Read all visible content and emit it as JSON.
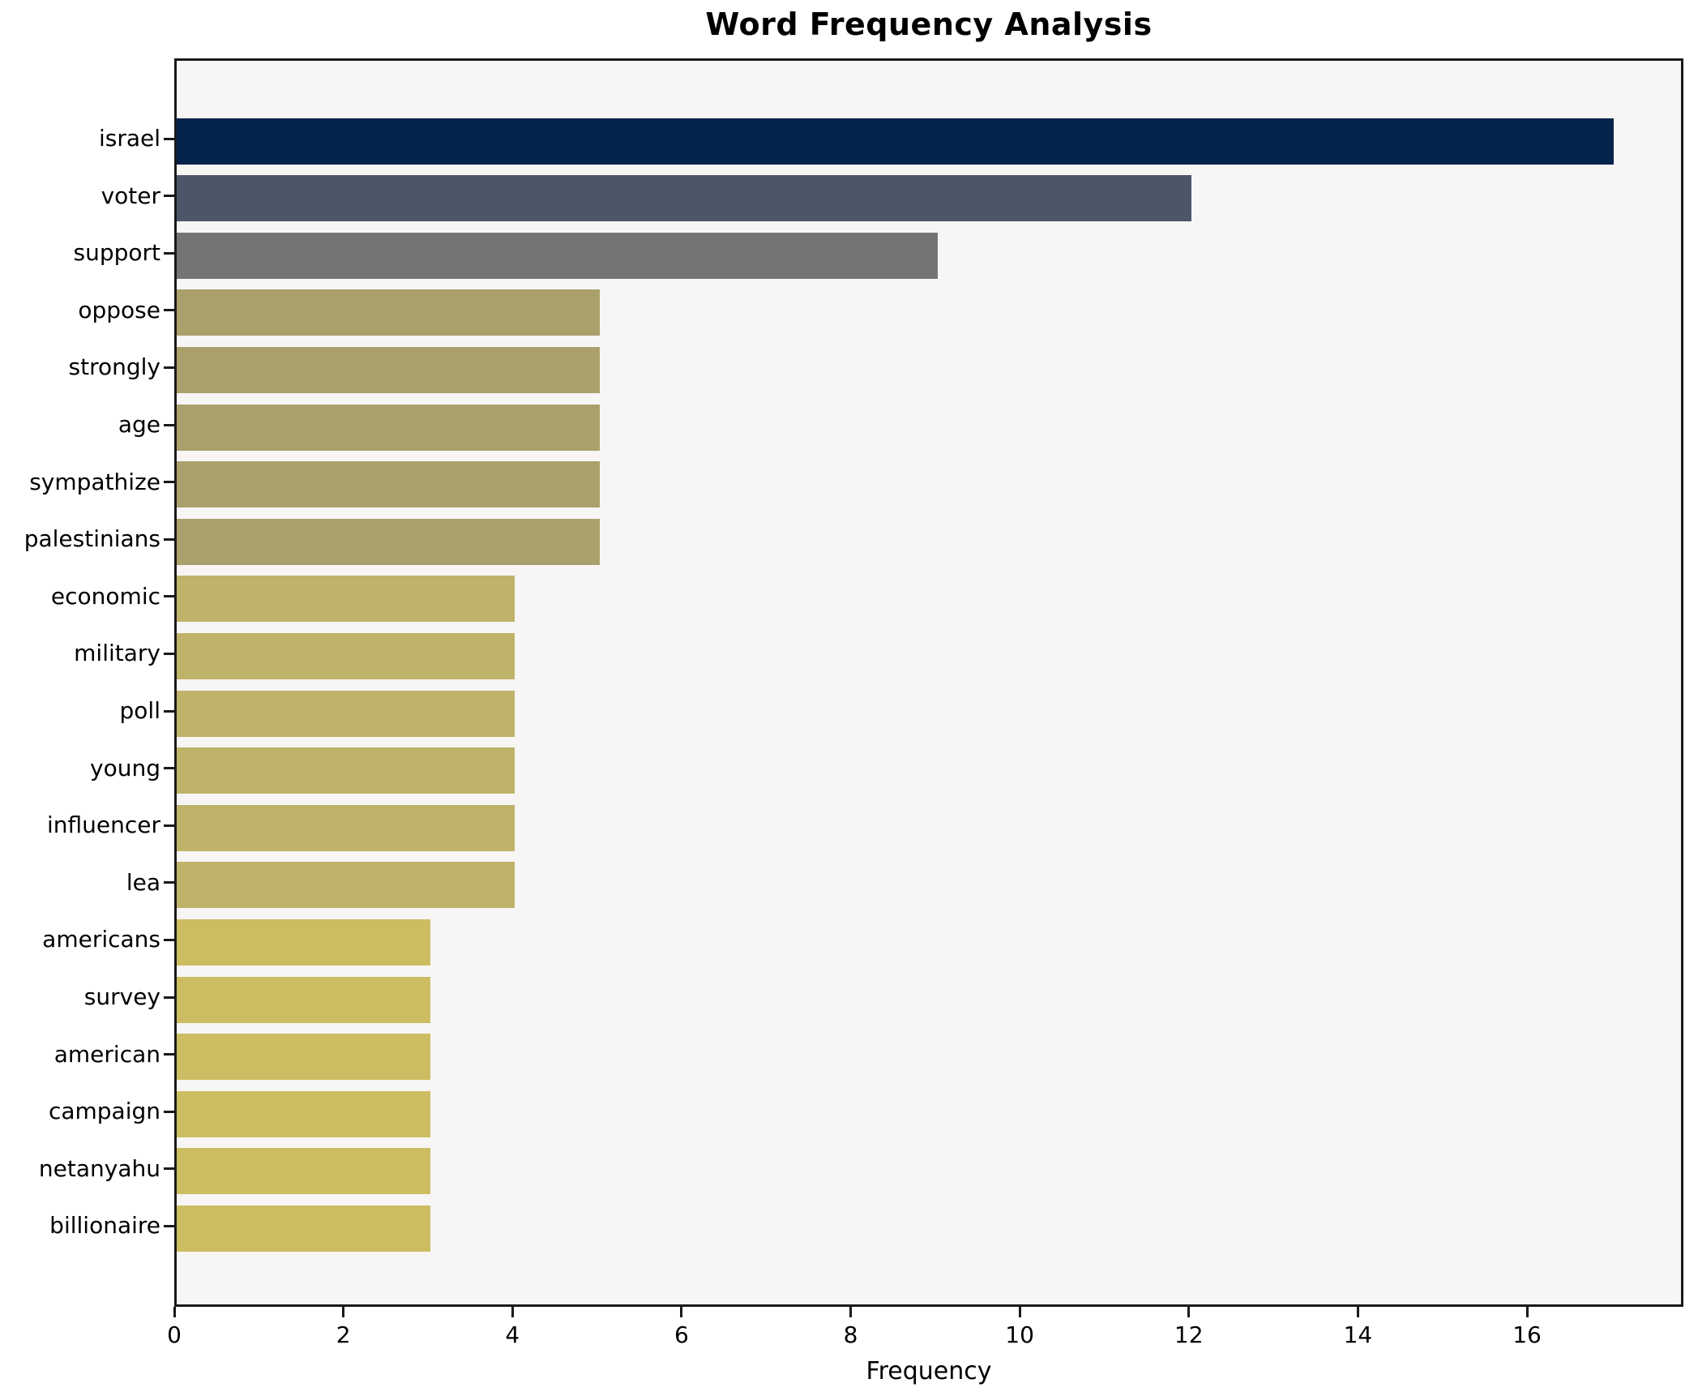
{
  "chart_data": {
    "type": "bar",
    "orientation": "horizontal",
    "title": "Word Frequency Analysis",
    "xlabel": "Frequency",
    "ylabel": "",
    "categories": [
      "israel",
      "voter",
      "support",
      "oppose",
      "strongly",
      "age",
      "sympathize",
      "palestinians",
      "economic",
      "military",
      "poll",
      "young",
      "influencer",
      "lea",
      "americans",
      "survey",
      "american",
      "campaign",
      "netanyahu",
      "billionaire"
    ],
    "values": [
      17,
      12,
      9,
      5,
      5,
      5,
      5,
      5,
      4,
      4,
      4,
      4,
      4,
      4,
      3,
      3,
      3,
      3,
      3,
      3
    ],
    "bar_colors": [
      "#03234a",
      "#4d5669",
      "#747476",
      "#aaa06c",
      "#aaa06c",
      "#aaa06c",
      "#aaa06c",
      "#aaa06c",
      "#bfb269",
      "#bfb269",
      "#bfb269",
      "#bfb269",
      "#bfb269",
      "#bfb269",
      "#cdbd62",
      "#cdbd62",
      "#cdbd62",
      "#cdbd62",
      "#cdbd62",
      "#cdbd62"
    ],
    "xlim": [
      0,
      17.85
    ],
    "xticks": [
      0,
      2,
      4,
      6,
      8,
      10,
      12,
      14,
      16
    ],
    "grid": false,
    "legend": null
  },
  "style": {
    "figure_bg": "#ffffff",
    "plot_bg": "#f7f6f5",
    "spine_color": "#1a1a1a",
    "text_color": "#000000"
  }
}
